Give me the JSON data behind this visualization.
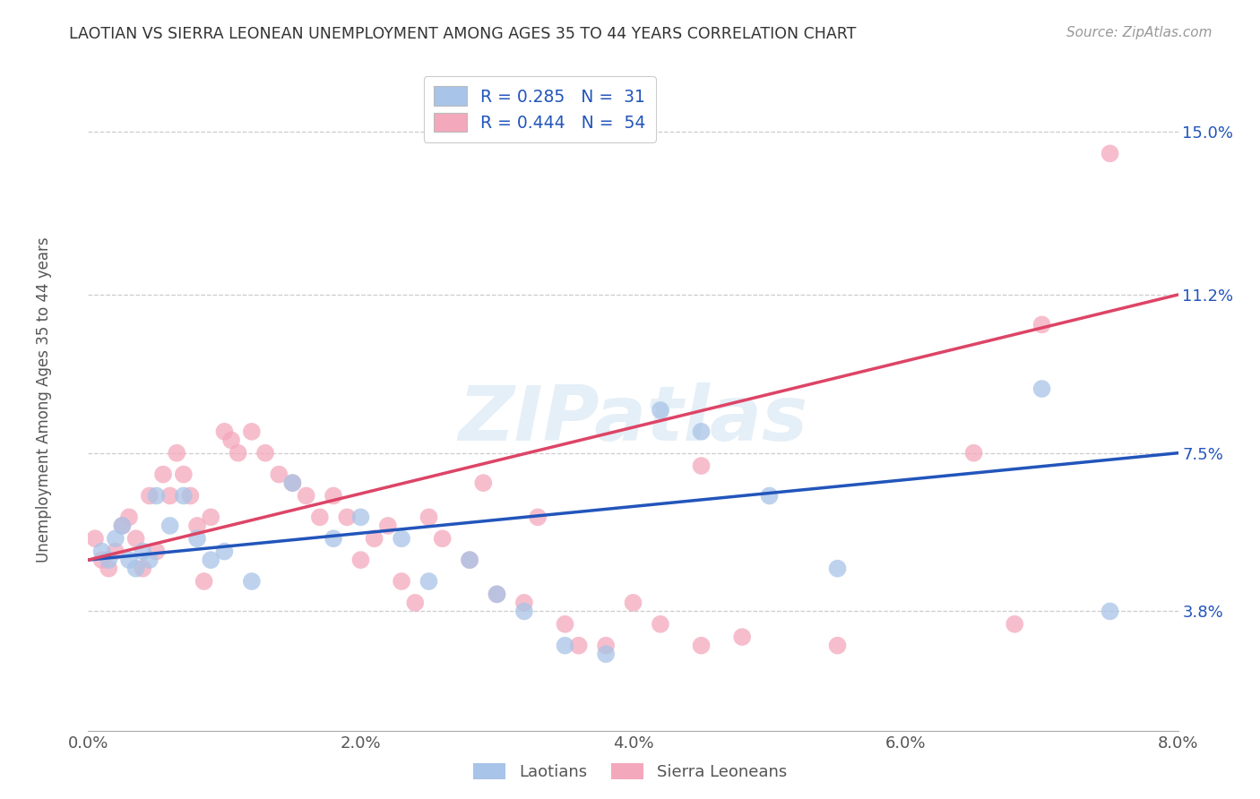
{
  "title": "LAOTIAN VS SIERRA LEONEAN UNEMPLOYMENT AMONG AGES 35 TO 44 YEARS CORRELATION CHART",
  "source": "Source: ZipAtlas.com",
  "xlim": [
    0.0,
    8.0
  ],
  "ylim": [
    1.0,
    16.5
  ],
  "xlabel_vals": [
    0.0,
    2.0,
    4.0,
    6.0,
    8.0
  ],
  "ylabel_vals": [
    3.8,
    7.5,
    11.2,
    15.0
  ],
  "watermark": "ZIPatlas",
  "legend_blue_r": "R = 0.285",
  "legend_blue_n": "N =  31",
  "legend_pink_r": "R = 0.444",
  "legend_pink_n": "N =  54",
  "blue_color": "#a8c4e8",
  "pink_color": "#f4a8bc",
  "blue_line_color": "#2255bb",
  "pink_line_color": "#dd4466",
  "legend_text_color": "#2255bb",
  "axis_label_color": "#555555",
  "right_tick_color": "#2255bb",
  "blue_x": [
    0.1,
    0.15,
    0.2,
    0.25,
    0.3,
    0.35,
    0.4,
    0.45,
    0.5,
    0.6,
    0.7,
    0.8,
    0.9,
    1.0,
    1.2,
    1.5,
    1.8,
    2.0,
    2.3,
    2.5,
    2.8,
    3.0,
    3.2,
    3.5,
    3.8,
    4.2,
    4.5,
    5.0,
    5.5,
    7.0,
    7.5
  ],
  "blue_y": [
    5.2,
    5.0,
    5.5,
    5.8,
    5.0,
    4.8,
    5.2,
    5.0,
    6.5,
    5.8,
    6.5,
    5.5,
    5.0,
    5.2,
    4.5,
    6.8,
    5.5,
    6.0,
    5.5,
    4.5,
    5.0,
    4.2,
    3.8,
    3.0,
    2.8,
    8.5,
    8.0,
    6.5,
    4.8,
    9.0,
    3.8
  ],
  "pink_x": [
    0.05,
    0.1,
    0.15,
    0.2,
    0.25,
    0.3,
    0.35,
    0.4,
    0.45,
    0.5,
    0.55,
    0.6,
    0.65,
    0.7,
    0.75,
    0.8,
    0.85,
    0.9,
    1.0,
    1.05,
    1.1,
    1.2,
    1.3,
    1.4,
    1.5,
    1.6,
    1.7,
    1.8,
    1.9,
    2.0,
    2.1,
    2.2,
    2.3,
    2.4,
    2.5,
    2.6,
    2.8,
    3.0,
    3.2,
    3.5,
    3.8,
    4.0,
    4.2,
    4.5,
    4.8,
    5.5,
    6.5,
    6.8,
    7.0,
    7.5,
    3.3,
    3.6,
    4.5,
    2.9
  ],
  "pink_y": [
    5.5,
    5.0,
    4.8,
    5.2,
    5.8,
    6.0,
    5.5,
    4.8,
    6.5,
    5.2,
    7.0,
    6.5,
    7.5,
    7.0,
    6.5,
    5.8,
    4.5,
    6.0,
    8.0,
    7.8,
    7.5,
    8.0,
    7.5,
    7.0,
    6.8,
    6.5,
    6.0,
    6.5,
    6.0,
    5.0,
    5.5,
    5.8,
    4.5,
    4.0,
    6.0,
    5.5,
    5.0,
    4.2,
    4.0,
    3.5,
    3.0,
    4.0,
    3.5,
    3.0,
    3.2,
    3.0,
    7.5,
    3.5,
    10.5,
    14.5,
    6.0,
    3.0,
    7.2,
    6.8
  ],
  "blue_line_y_at_0": 5.0,
  "blue_line_y_at_8": 7.5,
  "pink_line_y_at_0": 5.0,
  "pink_line_y_at_8": 11.2
}
